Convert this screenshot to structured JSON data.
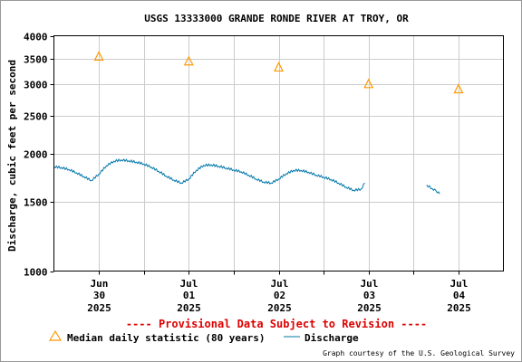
{
  "chart_data": {
    "type": "line",
    "title": "USGS 13333000 GRANDE RONDE RIVER AT TROY, OR",
    "ylabel": "Discharge, cubic feet per second",
    "y_scale": "log",
    "ylim": [
      1000,
      4000
    ],
    "y_ticks": [
      {
        "value": 1000,
        "label": "1000"
      },
      {
        "value": 1500,
        "label": "1500"
      },
      {
        "value": 2000,
        "label": "2000"
      },
      {
        "value": 2500,
        "label": "2500"
      },
      {
        "value": 3000,
        "label": "3000"
      },
      {
        "value": 3500,
        "label": "3500"
      },
      {
        "value": 4000,
        "label": "4000"
      }
    ],
    "xlim": [
      "2025-06-29 12:00",
      "2025-07-04 12:00"
    ],
    "x_ticks": [
      {
        "value": "2025-06-30 00:00",
        "month": "Jun",
        "day": "30",
        "year": "2025"
      },
      {
        "value": "2025-07-01 00:00",
        "month": "Jul",
        "day": "01",
        "year": "2025"
      },
      {
        "value": "2025-07-02 00:00",
        "month": "Jul",
        "day": "02",
        "year": "2025"
      },
      {
        "value": "2025-07-03 00:00",
        "month": "Jul",
        "day": "03",
        "year": "2025"
      },
      {
        "value": "2025-07-04 00:00",
        "month": "Jul",
        "day": "04",
        "year": "2025"
      }
    ],
    "grid": true,
    "series": [
      {
        "name": "Discharge",
        "kind": "line",
        "color": "#0077aa",
        "segments": [
          [
            {
              "x": "2025-06-29 12:00",
              "y": 1850
            },
            {
              "x": "2025-06-29 14:00",
              "y": 1840
            },
            {
              "x": "2025-06-29 16:00",
              "y": 1820
            },
            {
              "x": "2025-06-29 18:00",
              "y": 1785
            },
            {
              "x": "2025-06-29 20:00",
              "y": 1745
            },
            {
              "x": "2025-06-29 22:00",
              "y": 1705
            },
            {
              "x": "2025-06-30 00:00",
              "y": 1770
            },
            {
              "x": "2025-06-30 02:00",
              "y": 1860
            },
            {
              "x": "2025-06-30 04:00",
              "y": 1910
            },
            {
              "x": "2025-06-30 06:00",
              "y": 1925
            },
            {
              "x": "2025-06-30 08:00",
              "y": 1915
            },
            {
              "x": "2025-06-30 10:00",
              "y": 1900
            },
            {
              "x": "2025-06-30 12:00",
              "y": 1880
            },
            {
              "x": "2025-06-30 14:00",
              "y": 1845
            },
            {
              "x": "2025-06-30 16:00",
              "y": 1800
            },
            {
              "x": "2025-06-30 18:00",
              "y": 1750
            },
            {
              "x": "2025-06-30 20:00",
              "y": 1710
            },
            {
              "x": "2025-06-30 22:00",
              "y": 1680
            },
            {
              "x": "2025-07-01 00:00",
              "y": 1720
            },
            {
              "x": "2025-07-01 02:00",
              "y": 1810
            },
            {
              "x": "2025-07-01 04:00",
              "y": 1865
            },
            {
              "x": "2025-07-01 06:00",
              "y": 1870
            },
            {
              "x": "2025-07-01 08:00",
              "y": 1855
            },
            {
              "x": "2025-07-01 10:00",
              "y": 1835
            },
            {
              "x": "2025-07-01 12:00",
              "y": 1815
            },
            {
              "x": "2025-07-01 14:00",
              "y": 1795
            },
            {
              "x": "2025-07-01 16:00",
              "y": 1760
            },
            {
              "x": "2025-07-01 18:00",
              "y": 1720
            },
            {
              "x": "2025-07-01 20:00",
              "y": 1690
            },
            {
              "x": "2025-07-01 22:00",
              "y": 1680
            },
            {
              "x": "2025-07-02 00:00",
              "y": 1720
            },
            {
              "x": "2025-07-02 02:00",
              "y": 1775
            },
            {
              "x": "2025-07-02 04:00",
              "y": 1810
            },
            {
              "x": "2025-07-02 06:00",
              "y": 1810
            },
            {
              "x": "2025-07-02 08:00",
              "y": 1790
            },
            {
              "x": "2025-07-02 10:00",
              "y": 1760
            },
            {
              "x": "2025-07-02 12:00",
              "y": 1740
            },
            {
              "x": "2025-07-02 14:00",
              "y": 1715
            },
            {
              "x": "2025-07-02 16:00",
              "y": 1680
            },
            {
              "x": "2025-07-02 18:00",
              "y": 1640
            },
            {
              "x": "2025-07-02 20:00",
              "y": 1610
            },
            {
              "x": "2025-07-02 22:00",
              "y": 1620
            },
            {
              "x": "2025-07-02 23:00",
              "y": 1680
            }
          ],
          [
            {
              "x": "2025-07-03 15:30",
              "y": 1660
            },
            {
              "x": "2025-07-03 17:00",
              "y": 1625
            },
            {
              "x": "2025-07-03 18:00",
              "y": 1605
            },
            {
              "x": "2025-07-03 19:00",
              "y": 1575
            }
          ]
        ]
      },
      {
        "name": "Median daily statistic (80 years)",
        "kind": "marker",
        "marker": "triangle",
        "color": "#ff9900",
        "points": [
          {
            "x": "2025-06-30 00:00",
            "y": 3540
          },
          {
            "x": "2025-07-01 00:00",
            "y": 3440
          },
          {
            "x": "2025-07-02 00:00",
            "y": 3320
          },
          {
            "x": "2025-07-03 00:00",
            "y": 3010
          },
          {
            "x": "2025-07-04 00:00",
            "y": 2920
          }
        ]
      }
    ],
    "provisional_note": "---- Provisional Data Subject to Revision ----",
    "legend": {
      "median_label": "Median daily statistic (80 years)",
      "discharge_label": "Discharge"
    },
    "credit": "Graph courtesy of the U.S. Geological Survey"
  },
  "colors": {
    "frame_border": "#999999",
    "plot_border": "#000000",
    "grid": "#cccccc",
    "note": "#dd0000",
    "discharge": "#0077aa",
    "median": "#ff9900"
  }
}
